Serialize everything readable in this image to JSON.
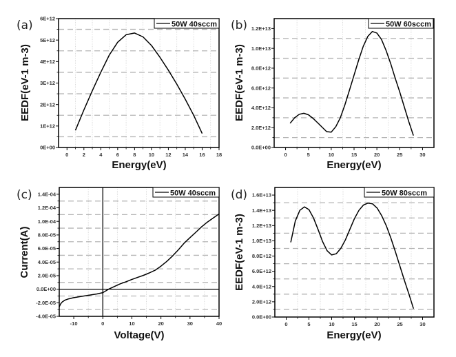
{
  "figure": {
    "background": "#ffffff",
    "line_color": "#000000",
    "grid_color": "#b5b5b5"
  },
  "chart_data": [
    {
      "id": "a",
      "type": "line",
      "panel_label": "(a)",
      "title": "",
      "xlabel": "Energy(eV)",
      "ylabel": "EEDF(eV-1 m-3)",
      "xlim": [
        -1,
        18
      ],
      "ylim": [
        0,
        6000000000000.0
      ],
      "xticks": [
        0,
        2,
        4,
        6,
        8,
        10,
        12,
        14,
        16,
        18
      ],
      "xtick_labels": [
        "0",
        "2",
        "4",
        "6",
        "8",
        "10",
        "12",
        "14",
        "16",
        "18"
      ],
      "yticks": [
        0,
        1000000000000.0,
        2000000000000.0,
        3000000000000.0,
        4000000000000.0,
        5000000000000.0,
        6000000000000.0
      ],
      "ytick_labels": [
        "0E+00",
        "1E+12",
        "2E+12",
        "3E+12",
        "4E+12",
        "5E+12",
        "6E+12"
      ],
      "xgrid": [
        1,
        3,
        5,
        7,
        9,
        11,
        13,
        15,
        17
      ],
      "ygrid": [
        500000000000.0,
        1500000000000.0,
        2500000000000.0,
        3500000000000.0,
        4500000000000.0,
        5500000000000.0
      ],
      "zero_lines": false,
      "legend": "top-right",
      "series": [
        {
          "name": "50W 40sccm",
          "x": [
            1,
            2,
            3,
            4,
            5,
            6,
            7,
            8,
            9,
            10,
            11,
            12,
            13,
            14,
            15,
            16
          ],
          "y": [
            800000000000.0,
            1750000000000.0,
            2650000000000.0,
            3500000000000.0,
            4300000000000.0,
            4900000000000.0,
            5250000000000.0,
            5330000000000.0,
            5150000000000.0,
            4750000000000.0,
            4200000000000.0,
            3600000000000.0,
            2950000000000.0,
            2250000000000.0,
            1500000000000.0,
            650000000000.0
          ]
        }
      ]
    },
    {
      "id": "b",
      "type": "line",
      "panel_label": "(b)",
      "title": "",
      "xlabel": "Energy(eV)",
      "ylabel": "EEDF(eV-1 m-3)",
      "xlim": [
        -2.5,
        32.5
      ],
      "ylim": [
        0,
        13000000000000.0
      ],
      "xticks": [
        0,
        5,
        10,
        15,
        20,
        25,
        30
      ],
      "xtick_labels": [
        "0",
        "5",
        "10",
        "15",
        "20",
        "25",
        "30"
      ],
      "yticks": [
        0,
        2000000000000.0,
        4000000000000.0,
        6000000000000.0,
        8000000000000.0,
        10000000000000.0,
        12000000000000.0
      ],
      "ytick_labels": [
        "0.0E+00",
        "2.0E+12",
        "4.0E+12",
        "6.0E+12",
        "8.0E+12",
        "1.0E+13",
        "1.2E+13"
      ],
      "xgrid": [
        2.5,
        7.5,
        12.5,
        17.5,
        22.5,
        27.5
      ],
      "ygrid": [
        1000000000000.0,
        3000000000000.0,
        5000000000000.0,
        7000000000000.0,
        9000000000000.0,
        11000000000000.0
      ],
      "zero_lines": false,
      "legend": "top-right",
      "series": [
        {
          "name": "50W 60sccm",
          "x": [
            1,
            2,
            3,
            4,
            5,
            6,
            7,
            8,
            9,
            10,
            11,
            12,
            13,
            14,
            15,
            16,
            17,
            18,
            19,
            20,
            21,
            22,
            23,
            24,
            25,
            26,
            27,
            28
          ],
          "y": [
            2450000000000.0,
            3000000000000.0,
            3350000000000.0,
            3450000000000.0,
            3300000000000.0,
            2950000000000.0,
            2500000000000.0,
            2050000000000.0,
            1600000000000.0,
            1550000000000.0,
            2100000000000.0,
            3000000000000.0,
            4300000000000.0,
            5800000000000.0,
            7300000000000.0,
            8800000000000.0,
            10200000000000.0,
            11200000000000.0,
            11700000000000.0,
            11550000000000.0,
            10900000000000.0,
            9800000000000.0,
            8500000000000.0,
            7000000000000.0,
            5600000000000.0,
            4100000000000.0,
            2600000000000.0,
            1200000000000.0
          ]
        }
      ]
    },
    {
      "id": "c",
      "type": "line",
      "panel_label": "(c)",
      "title": "",
      "xlabel": "Voltage(V)",
      "ylabel": "Current(A)",
      "xlim": [
        -15,
        40
      ],
      "ylim": [
        -4e-05,
        0.00015
      ],
      "xticks": [
        -10,
        0,
        10,
        20,
        30,
        40
      ],
      "xtick_labels": [
        "-10",
        "0",
        "10",
        "20",
        "30",
        "40"
      ],
      "yticks": [
        -4e-05,
        -2e-05,
        0,
        2e-05,
        4e-05,
        6e-05,
        8e-05,
        0.0001,
        0.00012,
        0.00014
      ],
      "ytick_labels": [
        "-4.0E-05",
        "-2.0E-05",
        "0.0E+00",
        "2.0E-05",
        "4.0E-05",
        "6.0E-05",
        "8.0E-05",
        "1.0E-04",
        "1.2E-04",
        "1.4E-04"
      ],
      "xgrid": [
        -5,
        5,
        15,
        25,
        35
      ],
      "ygrid": [
        -3e-05,
        -1e-05,
        1e-05,
        3e-05,
        5e-05,
        7e-05,
        9e-05,
        0.00011,
        0.00013
      ],
      "zero_lines": true,
      "legend": "top-right",
      "series": [
        {
          "name": "50W 40sccm",
          "x": [
            -15,
            -14.5,
            -14,
            -13,
            -12,
            -10,
            -8,
            -5,
            -2,
            0,
            2,
            4,
            6,
            8,
            10,
            12,
            14,
            16,
            18,
            20,
            22,
            24,
            26,
            28,
            30,
            32,
            34,
            36,
            38,
            40
          ],
          "y": [
            -2.6e-05,
            -2.15e-05,
            -1.9e-05,
            -1.6e-05,
            -1.45e-05,
            -1.25e-05,
            -1.1e-05,
            -9e-06,
            -7e-06,
            -5e-06,
            0,
            4e-06,
            8e-06,
            1.1e-05,
            1.45e-05,
            1.75e-05,
            2.05e-05,
            2.4e-05,
            2.8e-05,
            3.4e-05,
            4.1e-05,
            4.9e-05,
            5.8e-05,
            6.8e-05,
            7.6e-05,
            8.4e-05,
            9.2e-05,
            9.9e-05,
            0.000105,
            0.000111
          ]
        }
      ]
    },
    {
      "id": "d",
      "type": "line",
      "panel_label": "(d)",
      "title": "",
      "xlabel": "Energy(eV)",
      "ylabel": "EEDF(eV-1 m-3)",
      "xlim": [
        -2.5,
        32.5
      ],
      "ylim": [
        0,
        17000000000000.0
      ],
      "xticks": [
        0,
        5,
        10,
        15,
        20,
        25,
        30
      ],
      "xtick_labels": [
        "0",
        "5",
        "10",
        "15",
        "20",
        "25",
        "30"
      ],
      "yticks": [
        0,
        2000000000000.0,
        4000000000000.0,
        6000000000000.0,
        8000000000000.0,
        10000000000000.0,
        12000000000000.0,
        14000000000000.0,
        16000000000000.0
      ],
      "ytick_labels": [
        "0.0E+00",
        "2.0E+12",
        "4.0E+12",
        "6.0E+12",
        "8.0E+12",
        "1.0E+13",
        "1.2E+13",
        "1.4E+13",
        "1.6E+13"
      ],
      "xgrid": [
        2.5,
        7.5,
        12.5,
        17.5,
        22.5,
        27.5
      ],
      "ygrid": [
        1000000000000.0,
        3000000000000.0,
        5000000000000.0,
        7000000000000.0,
        9000000000000.0,
        11000000000000.0,
        13000000000000.0,
        15000000000000.0
      ],
      "zero_lines": false,
      "legend": "top-right",
      "series": [
        {
          "name": "50W 80sccm",
          "x": [
            1,
            2,
            3,
            4,
            5,
            6,
            7,
            8,
            9,
            10,
            11,
            12,
            13,
            14,
            15,
            16,
            17,
            18,
            19,
            20,
            21,
            22,
            23,
            24,
            25,
            26,
            27,
            28
          ],
          "y": [
            9800000000000.0,
            12600000000000.0,
            14000000000000.0,
            14450000000000.0,
            14100000000000.0,
            13000000000000.0,
            11500000000000.0,
            9900000000000.0,
            8700000000000.0,
            8150000000000.0,
            8300000000000.0,
            9000000000000.0,
            10100000000000.0,
            11500000000000.0,
            12900000000000.0,
            14000000000000.0,
            14700000000000.0,
            14950000000000.0,
            14850000000000.0,
            14300000000000.0,
            13300000000000.0,
            12000000000000.0,
            10400000000000.0,
            8600000000000.0,
            6700000000000.0,
            4800000000000.0,
            3000000000000.0,
            1100000000000.0
          ]
        }
      ]
    }
  ]
}
